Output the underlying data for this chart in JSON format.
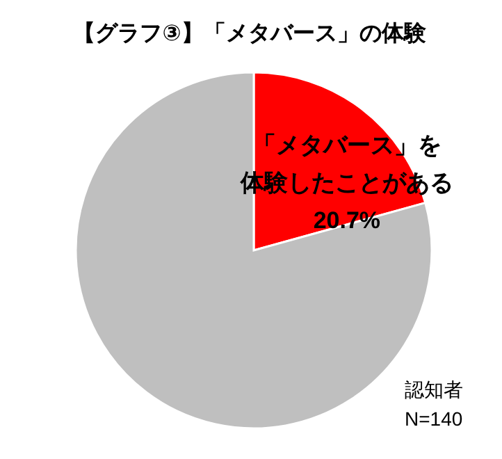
{
  "chart_data": {
    "type": "pie",
    "title": "【グラフ③】「メタバース」の体験",
    "categories": [
      "「メタバース」を体験したことがある",
      null
    ],
    "values": [
      20.7,
      79.3
    ],
    "colors": [
      "#ff0000",
      "#bfbfbf"
    ],
    "value_labels": [
      "20.7%",
      null
    ],
    "legend": false,
    "annotations": [
      "認知者\nN=140"
    ]
  }
}
